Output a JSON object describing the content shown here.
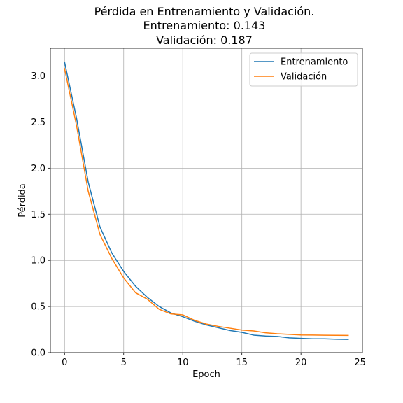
{
  "chart_data": {
    "type": "line",
    "title_lines": [
      "Pérdida en Entrenamiento y Validación.",
      "Entrenamiento: 0.143",
      "Validación: 0.187"
    ],
    "xlabel": "Epoch",
    "ylabel": "Pérdida",
    "xlim": [
      -1.2,
      25.2
    ],
    "ylim": [
      0,
      3.3
    ],
    "xticks": [
      0,
      5,
      10,
      15,
      20,
      25
    ],
    "xtick_labels": [
      "0",
      "5",
      "10",
      "15",
      "20",
      "25"
    ],
    "yticks": [
      0.0,
      0.5,
      1.0,
      1.5,
      2.0,
      2.5,
      3.0
    ],
    "ytick_labels": [
      "0.0",
      "0.5",
      "1.0",
      "1.5",
      "2.0",
      "2.5",
      "3.0"
    ],
    "grid": true,
    "legend_position": "top-right",
    "x": [
      0,
      1,
      2,
      3,
      4,
      5,
      6,
      7,
      8,
      9,
      10,
      11,
      12,
      13,
      14,
      15,
      16,
      17,
      18,
      19,
      20,
      21,
      22,
      23,
      24
    ],
    "series": [
      {
        "name": "Entrenamiento",
        "color": "#1f77b4",
        "values": [
          3.15,
          2.55,
          1.85,
          1.36,
          1.08,
          0.88,
          0.72,
          0.6,
          0.5,
          0.43,
          0.39,
          0.34,
          0.3,
          0.27,
          0.24,
          0.22,
          0.19,
          0.18,
          0.175,
          0.16,
          0.155,
          0.15,
          0.15,
          0.145,
          0.143
        ]
      },
      {
        "name": "Validación",
        "color": "#ff7f0e",
        "values": [
          3.08,
          2.47,
          1.75,
          1.28,
          1.02,
          0.81,
          0.65,
          0.58,
          0.47,
          0.42,
          0.41,
          0.35,
          0.31,
          0.285,
          0.265,
          0.245,
          0.235,
          0.215,
          0.205,
          0.198,
          0.192,
          0.191,
          0.189,
          0.188,
          0.187
        ]
      }
    ]
  }
}
